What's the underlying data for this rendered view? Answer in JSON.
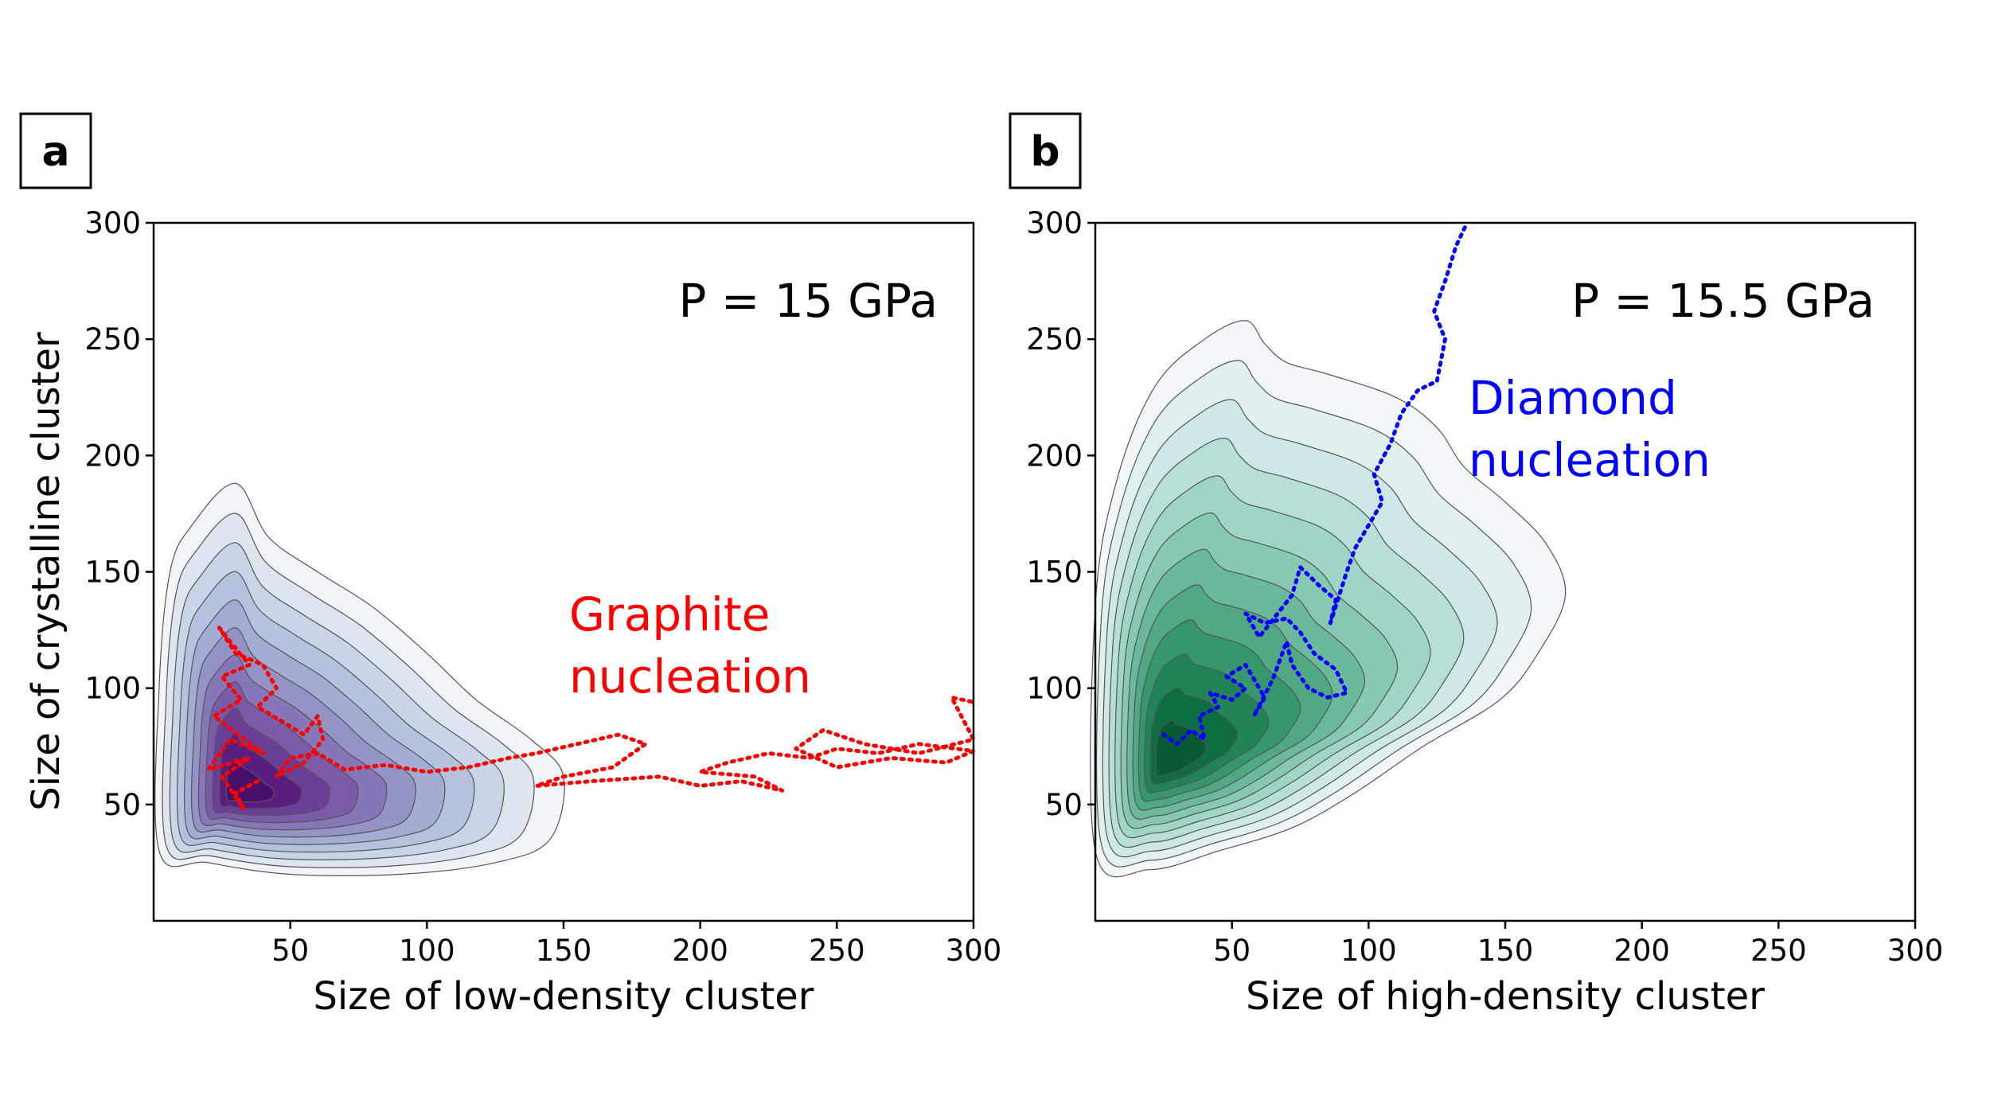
{
  "chart_data": [
    {
      "panel": "a",
      "type": "contour",
      "annotation_pressure": "P = 15 GPa",
      "xlabel": "Size of low-density cluster",
      "ylabel": "Size of crystalline cluster",
      "xlim": [
        0,
        300
      ],
      "ylim": [
        0,
        300
      ],
      "xticks": [
        50,
        100,
        150,
        200,
        250,
        300
      ],
      "yticks": [
        50,
        100,
        150,
        200,
        250,
        300
      ],
      "density": {
        "colormap": "purples",
        "peak": [
          30,
          55
        ],
        "outer_contour": [
          [
            2,
            30
          ],
          [
            2,
            100
          ],
          [
            6,
            150
          ],
          [
            14,
            170
          ],
          [
            30,
            188
          ],
          [
            42,
            165
          ],
          [
            60,
            150
          ],
          [
            80,
            135
          ],
          [
            100,
            115
          ],
          [
            118,
            95
          ],
          [
            138,
            78
          ],
          [
            150,
            62
          ],
          [
            145,
            35
          ],
          [
            125,
            25
          ],
          [
            90,
            20
          ],
          [
            50,
            20
          ],
          [
            20,
            25
          ]
        ],
        "levels": 10,
        "colors": [
          "#f1f5f9",
          "#dde6ef",
          "#c8d5e6",
          "#b4c2de",
          "#a3acd3",
          "#9393c6",
          "#8577b8",
          "#7a5ba8",
          "#6c3f96",
          "#5a1e80",
          "#4a0f6b"
        ]
      },
      "trajectory": {
        "label_lines": [
          "Graphite",
          "nucleation"
        ],
        "color": "#ff0000",
        "points": [
          [
            38,
            60
          ],
          [
            30,
            55
          ],
          [
            33,
            48
          ],
          [
            25,
            62
          ],
          [
            35,
            70
          ],
          [
            20,
            65
          ],
          [
            28,
            78
          ],
          [
            40,
            72
          ],
          [
            22,
            88
          ],
          [
            32,
            95
          ],
          [
            25,
            105
          ],
          [
            35,
            110
          ],
          [
            28,
            120
          ],
          [
            24,
            126
          ],
          [
            30,
            115
          ],
          [
            40,
            110
          ],
          [
            45,
            100
          ],
          [
            38,
            92
          ],
          [
            48,
            85
          ],
          [
            55,
            80
          ],
          [
            60,
            88
          ],
          [
            62,
            78
          ],
          [
            55,
            68
          ],
          [
            45,
            62
          ],
          [
            50,
            70
          ],
          [
            60,
            72
          ],
          [
            70,
            65
          ],
          [
            85,
            67
          ],
          [
            100,
            64
          ],
          [
            115,
            66
          ],
          [
            130,
            70
          ],
          [
            140,
            72
          ],
          [
            155,
            76
          ],
          [
            170,
            80
          ],
          [
            180,
            76
          ],
          [
            168,
            66
          ],
          [
            150,
            62
          ],
          [
            140,
            58
          ],
          [
            160,
            60
          ],
          [
            185,
            62
          ],
          [
            200,
            58
          ],
          [
            215,
            60
          ],
          [
            230,
            56
          ],
          [
            220,
            62
          ],
          [
            200,
            64
          ],
          [
            210,
            68
          ],
          [
            225,
            72
          ],
          [
            240,
            70
          ],
          [
            250,
            74
          ],
          [
            265,
            72
          ],
          [
            280,
            76
          ],
          [
            300,
            73
          ],
          [
            290,
            68
          ],
          [
            270,
            70
          ],
          [
            250,
            66
          ],
          [
            235,
            74
          ],
          [
            245,
            82
          ],
          [
            260,
            76
          ],
          [
            280,
            72
          ],
          [
            300,
            78
          ],
          [
            292,
            96
          ],
          [
            300,
            94
          ]
        ]
      }
    },
    {
      "panel": "b",
      "type": "contour",
      "annotation_pressure": "P = 15.5 GPa",
      "xlabel": "Size of high-density cluster",
      "ylabel": "",
      "xlim": [
        0,
        300
      ],
      "ylim": [
        0,
        300
      ],
      "xticks": [
        50,
        100,
        150,
        200,
        250,
        300
      ],
      "yticks": [
        50,
        100,
        150,
        200,
        250,
        300
      ],
      "density": {
        "colormap": "greens",
        "peak": [
          25,
          67
        ],
        "outer_contour": [
          [
            0,
            135
          ],
          [
            8,
            190
          ],
          [
            22,
            230
          ],
          [
            40,
            250
          ],
          [
            55,
            258
          ],
          [
            62,
            248
          ],
          [
            70,
            240
          ],
          [
            85,
            235
          ],
          [
            110,
            225
          ],
          [
            125,
            212
          ],
          [
            135,
            195
          ],
          [
            150,
            180
          ],
          [
            165,
            162
          ],
          [
            172,
            140
          ],
          [
            162,
            115
          ],
          [
            148,
            95
          ],
          [
            120,
            75
          ],
          [
            95,
            55
          ],
          [
            72,
            40
          ],
          [
            45,
            30
          ],
          [
            20,
            22
          ],
          [
            0,
            30
          ]
        ],
        "levels": 11,
        "colors": [
          "#f2f7f9",
          "#e0f0f1",
          "#cde8e6",
          "#b7dfd8",
          "#9fd5c6",
          "#86c8b2",
          "#6ab99b",
          "#50a983",
          "#37976c",
          "#208456",
          "#0e6e42",
          "#075a34"
        ]
      },
      "trajectory": {
        "label_lines": [
          "Diamond",
          "nucleation"
        ],
        "color": "#0000ff",
        "points": [
          [
            25,
            80
          ],
          [
            30,
            76
          ],
          [
            35,
            82
          ],
          [
            40,
            78
          ],
          [
            38,
            88
          ],
          [
            45,
            92
          ],
          [
            42,
            98
          ],
          [
            50,
            95
          ],
          [
            55,
            100
          ],
          [
            48,
            105
          ],
          [
            55,
            110
          ],
          [
            62,
            96
          ],
          [
            58,
            88
          ],
          [
            65,
            104
          ],
          [
            70,
            120
          ],
          [
            72,
            110
          ],
          [
            78,
            100
          ],
          [
            85,
            96
          ],
          [
            92,
            98
          ],
          [
            88,
            108
          ],
          [
            80,
            115
          ],
          [
            75,
            124
          ],
          [
            70,
            130
          ],
          [
            62,
            128
          ],
          [
            55,
            132
          ],
          [
            60,
            122
          ],
          [
            72,
            140
          ],
          [
            75,
            152
          ],
          [
            82,
            144
          ],
          [
            88,
            138
          ],
          [
            86,
            128
          ],
          [
            92,
            150
          ],
          [
            95,
            160
          ],
          [
            100,
            170
          ],
          [
            105,
            180
          ],
          [
            102,
            192
          ],
          [
            108,
            205
          ],
          [
            112,
            218
          ],
          [
            118,
            228
          ],
          [
            125,
            232
          ],
          [
            128,
            250
          ],
          [
            124,
            262
          ],
          [
            128,
            275
          ],
          [
            132,
            290
          ],
          [
            136,
            300
          ]
        ]
      }
    }
  ]
}
